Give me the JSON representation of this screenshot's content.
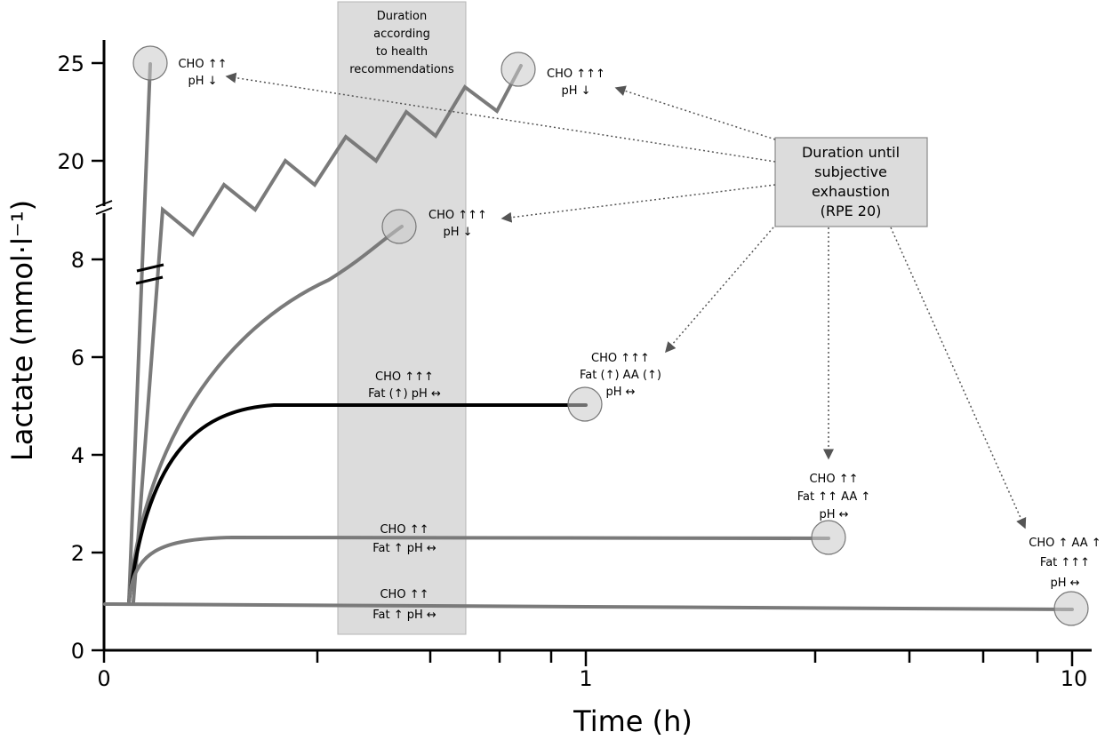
{
  "chart_data": {
    "type": "line",
    "xlabel": "Time (h)",
    "ylabel": "Lactate (mmol·l⁻¹)",
    "x_scale": "log",
    "x_ticks": [
      "0",
      "1",
      "10"
    ],
    "y_ticks": [
      "0",
      "2",
      "4",
      "6",
      "8",
      "20",
      "25"
    ],
    "y_axis_break": "between 8 and 20",
    "shaded_region": {
      "label": [
        "Duration",
        "according",
        "to health",
        "recommendations"
      ],
      "x_range_h": [
        0.2,
        0.7
      ]
    },
    "callout_box": {
      "lines": [
        "Duration until",
        "subjective",
        "exhaustion",
        "(RPE 20)"
      ]
    },
    "series": [
      {
        "key": "s25",
        "color": "#7a7a7a",
        "end_time_h": 0.05,
        "end_lactate": 25,
        "circle": true
      },
      {
        "key": "zigzag",
        "color": "#7a7a7a",
        "end_time_h": 0.55,
        "end_lactate": 24.8,
        "circle": true
      },
      {
        "key": "s8",
        "color": "#7a7a7a",
        "end_time_h": 0.45,
        "end_lactate": 8.7,
        "circle": true
      },
      {
        "key": "s5",
        "color": "#000000",
        "end_time_h": 1,
        "end_lactate": 5,
        "circle": true
      },
      {
        "key": "s23",
        "color": "#7a7a7a",
        "end_time_h": 4,
        "end_lactate": 2.3,
        "circle": true
      },
      {
        "key": "s1",
        "color": "#7a7a7a",
        "end_time_h": 10,
        "end_lactate": 0.85,
        "circle": true
      }
    ],
    "annotations": [
      {
        "key": "a25",
        "lines": [
          "CHO ↑↑",
          "pH ↓"
        ]
      },
      {
        "key": "azig",
        "lines": [
          "CHO ↑↑↑",
          "pH ↓"
        ]
      },
      {
        "key": "a8",
        "lines": [
          "CHO ↑↑↑",
          "pH ↓"
        ]
      },
      {
        "key": "a5",
        "lines": [
          "CHO ↑↑↑",
          "Fat (↑) pH ↔"
        ]
      },
      {
        "key": "a5end",
        "lines": [
          "CHO ↑↑↑",
          "Fat (↑)  AA (↑)",
          "pH ↔"
        ]
      },
      {
        "key": "a23",
        "lines": [
          "CHO ↑↑",
          "Fat ↑ pH ↔"
        ]
      },
      {
        "key": "a23end",
        "lines": [
          "CHO ↑↑",
          "Fat ↑↑  AA ↑",
          "pH ↔"
        ]
      },
      {
        "key": "a1",
        "lines": [
          "CHO ↑↑",
          "Fat ↑ pH ↔"
        ]
      },
      {
        "key": "a1end",
        "lines": [
          "CHO ↑ AA ↑",
          "Fat ↑↑↑",
          "pH ↔"
        ]
      }
    ]
  }
}
